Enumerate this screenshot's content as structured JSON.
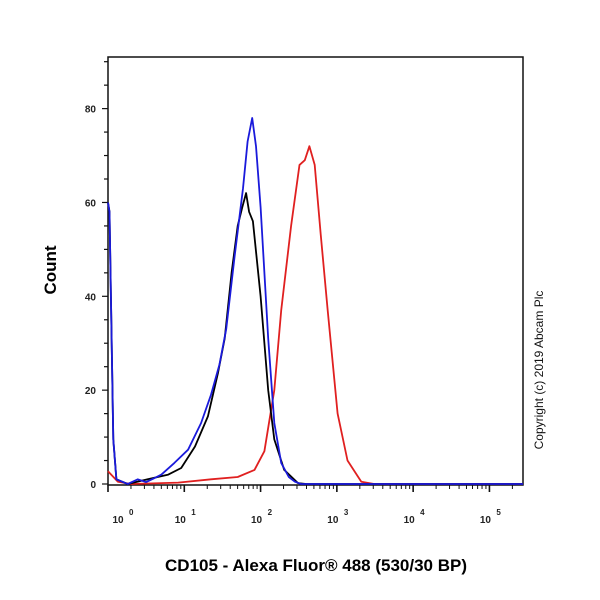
{
  "chart_data": {
    "type": "line",
    "title": "",
    "xlabel": "CD105 - Alexa Fluor® 488 (530/30 BP)",
    "ylabel": "Count",
    "xscale": "log10",
    "xlim_log10": [
      0,
      5.44
    ],
    "ylim": [
      0,
      91
    ],
    "x_ticks": [
      {
        "base": "10",
        "exp": "0",
        "log": 0
      },
      {
        "base": "10",
        "exp": "1",
        "log": 1
      },
      {
        "base": "10",
        "exp": "2",
        "log": 2
      },
      {
        "base": "10",
        "exp": "3",
        "log": 3
      },
      {
        "base": "10",
        "exp": "4",
        "log": 4
      },
      {
        "base": "10",
        "exp": "5",
        "log": 5
      }
    ],
    "y_ticks": [
      "0",
      "20",
      "40",
      "60",
      "80"
    ],
    "grid": false,
    "annotation": "Copyright (c) 2019 Abcam Plc",
    "series": [
      {
        "name": "blue",
        "color": "#1a1adb",
        "points_log10x_count": [
          [
            0,
            60
          ],
          [
            0.02,
            58
          ],
          [
            0.07,
            9.5
          ],
          [
            0.11,
            1
          ],
          [
            0.26,
            0
          ],
          [
            0.39,
            1
          ],
          [
            0.5,
            0.4
          ],
          [
            0.6,
            1.2
          ],
          [
            0.7,
            2
          ],
          [
            0.87,
            4.5
          ],
          [
            1.05,
            7.3
          ],
          [
            1.22,
            13
          ],
          [
            1.35,
            19
          ],
          [
            1.46,
            25.4
          ],
          [
            1.55,
            33
          ],
          [
            1.66,
            48.5
          ],
          [
            1.77,
            63
          ],
          [
            1.83,
            73
          ],
          [
            1.89,
            78
          ],
          [
            1.94,
            72
          ],
          [
            2.0,
            59
          ],
          [
            2.1,
            31
          ],
          [
            2.18,
            13
          ],
          [
            2.27,
            4.5
          ],
          [
            2.37,
            1.5
          ],
          [
            2.45,
            0.5
          ],
          [
            2.53,
            0
          ],
          [
            5.44,
            0
          ]
        ]
      },
      {
        "name": "black",
        "color": "#000000",
        "points_log10x_count": [
          [
            0,
            60
          ],
          [
            0.02,
            58
          ],
          [
            0.07,
            9.5
          ],
          [
            0.11,
            1
          ],
          [
            0.26,
            0
          ],
          [
            0.52,
            1
          ],
          [
            0.79,
            2
          ],
          [
            0.96,
            3.4
          ],
          [
            1.14,
            8
          ],
          [
            1.31,
            14.4
          ],
          [
            1.44,
            23.6
          ],
          [
            1.53,
            31
          ],
          [
            1.62,
            45
          ],
          [
            1.7,
            55
          ],
          [
            1.76,
            59
          ],
          [
            1.81,
            62
          ],
          [
            1.85,
            58
          ],
          [
            1.9,
            56
          ],
          [
            2.0,
            40
          ],
          [
            2.1,
            20
          ],
          [
            2.18,
            9.5
          ],
          [
            2.31,
            3
          ],
          [
            2.49,
            0.2
          ],
          [
            2.6,
            0
          ],
          [
            5.44,
            0
          ]
        ]
      },
      {
        "name": "red",
        "color": "#e02020",
        "points_log10x_count": [
          [
            0,
            2.7
          ],
          [
            0.13,
            0.5
          ],
          [
            0.3,
            0
          ],
          [
            0.92,
            0.3
          ],
          [
            1.35,
            1
          ],
          [
            1.7,
            1.5
          ],
          [
            1.92,
            3
          ],
          [
            2.05,
            7
          ],
          [
            2.18,
            20
          ],
          [
            2.27,
            37
          ],
          [
            2.4,
            55
          ],
          [
            2.51,
            68
          ],
          [
            2.58,
            69
          ],
          [
            2.64,
            72
          ],
          [
            2.71,
            68
          ],
          [
            2.79,
            53
          ],
          [
            2.88,
            37
          ],
          [
            3.01,
            15
          ],
          [
            3.14,
            5
          ],
          [
            3.32,
            0.5
          ],
          [
            3.49,
            0
          ],
          [
            5.44,
            0
          ]
        ]
      }
    ]
  }
}
